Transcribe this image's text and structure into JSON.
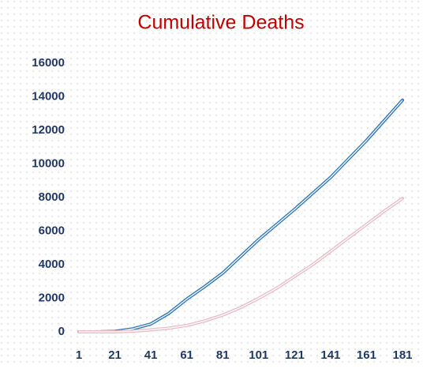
{
  "chart_data": {
    "type": "line",
    "title": "Cumulative Deaths",
    "x": [
      1,
      11,
      21,
      31,
      41,
      51,
      61,
      71,
      81,
      91,
      101,
      111,
      121,
      131,
      141,
      151,
      161,
      171,
      181
    ],
    "series": [
      {
        "color": "#2e75b6",
        "values": [
          0,
          0,
          30,
          180,
          470,
          1100,
          1950,
          2700,
          3500,
          4500,
          5500,
          6400,
          7300,
          8250,
          9200,
          10300,
          11400,
          12600,
          13800
        ]
      },
      {
        "color": "#e8bcc6",
        "values": [
          0,
          0,
          0,
          40,
          120,
          220,
          380,
          650,
          1000,
          1450,
          2000,
          2600,
          3300,
          4000,
          4800,
          5600,
          6400,
          7200,
          7950
        ]
      }
    ],
    "xlim": [
      1,
      181
    ],
    "xticks": [
      1,
      21,
      41,
      61,
      81,
      101,
      121,
      141,
      161,
      181
    ],
    "ylim": [
      0,
      16000
    ],
    "yticks": [
      0,
      2000,
      4000,
      6000,
      8000,
      10000,
      12000,
      14000,
      16000
    ]
  }
}
